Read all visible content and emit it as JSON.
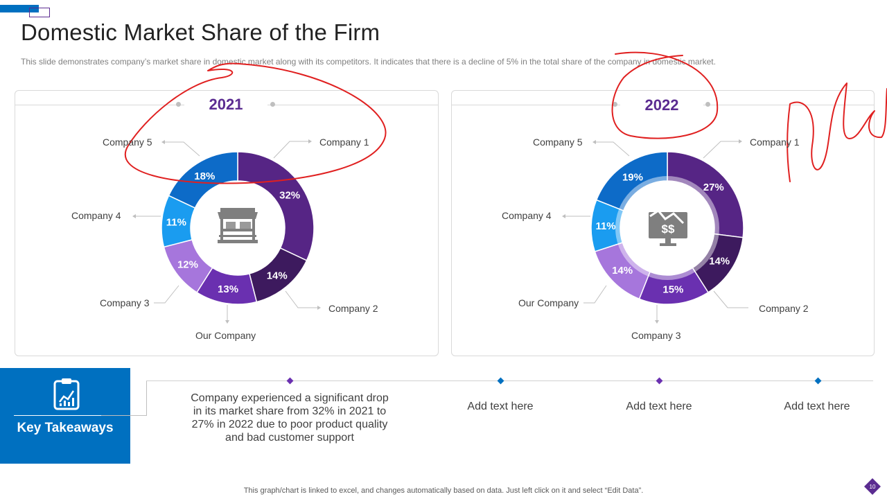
{
  "header": {
    "title": "Domestic Market Share of the Firm",
    "subtitle": "This slide demonstrates company’s market share in domestic market along with its competitors. It indicates that there is a decline of 5% in the total share of the company in domestic market."
  },
  "colors": {
    "accent_blue": "#0070c0",
    "accent_purple": "#5b2c91",
    "annotation_red": "#e02020",
    "slices": [
      "#562585",
      "#3d1a5e",
      "#6a30b0",
      "#a676dc",
      "#1a9cf0",
      "#0d6bc8"
    ]
  },
  "chart_data": [
    {
      "type": "pie",
      "variant": "donut",
      "title": "2021",
      "categories": [
        "Company 1",
        "Company 2",
        "Our Company",
        "Company 3",
        "Company 4",
        "Company 5"
      ],
      "values": [
        32,
        14,
        13,
        12,
        11,
        18
      ],
      "data_labels": [
        "32%",
        "14%",
        "13%",
        "12%",
        "11%",
        "18%"
      ],
      "center_icon": "store-icon"
    },
    {
      "type": "pie",
      "variant": "donut",
      "title": "2022",
      "categories": [
        "Company 1",
        "Company 2",
        "Company 3",
        "Our Company",
        "Company 4",
        "Company 5"
      ],
      "values": [
        27,
        14,
        15,
        14,
        11,
        19
      ],
      "data_labels": [
        "27%",
        "14%",
        "15%",
        "14%",
        "11%",
        "19%"
      ],
      "center_icon": "money-decline-monitor-icon"
    }
  ],
  "takeaways": {
    "heading": "Key Takeaways",
    "icon": "clipboard-chart-icon",
    "items": [
      "Company experienced a significant drop in its market share from 32% in 2021 to 27% in 2022 due to poor product quality and bad customer support",
      "Add text here",
      "Add text here",
      "Add text here"
    ]
  },
  "footer": {
    "note": "This graph/chart is linked to excel, and changes automatically based on data. Just left click on it and select “Edit Data”.",
    "page_number": "10"
  }
}
